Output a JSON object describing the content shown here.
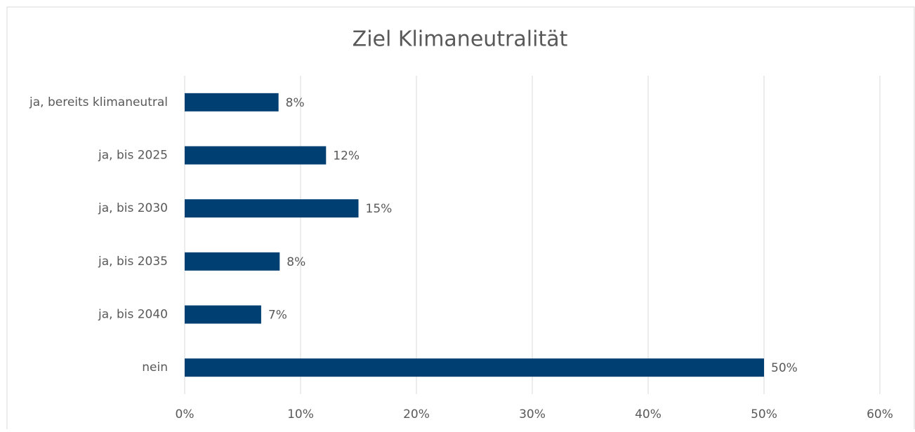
{
  "chart_data": {
    "type": "bar",
    "orientation": "horizontal",
    "title": "Ziel Klimaneutralität",
    "categories": [
      "ja, bereits klimaneutral",
      "ja, bis 2025",
      "ja, bis 2030",
      "ja, bis 2035",
      "ja, bis 2040",
      "nein"
    ],
    "values": [
      8.1,
      12.2,
      15.0,
      8.2,
      6.6,
      50.0
    ],
    "value_labels": [
      "8%",
      "12%",
      "15%",
      "8%",
      "7%",
      "50%"
    ],
    "color": "#003f72",
    "xlim": [
      0,
      60
    ],
    "xticks": [
      {
        "value": 0,
        "label": "0%"
      },
      {
        "value": 10,
        "label": "10%"
      },
      {
        "value": 20,
        "label": "20%"
      },
      {
        "value": 30,
        "label": "30%"
      },
      {
        "value": 40,
        "label": "40%"
      },
      {
        "value": 50,
        "label": "50%"
      },
      {
        "value": 60,
        "label": "60%"
      }
    ],
    "grid": true
  }
}
